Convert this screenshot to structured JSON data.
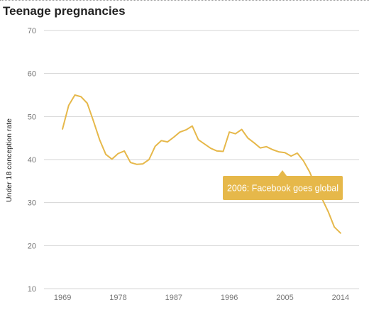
{
  "header": {
    "title": "Teenage pregnancies"
  },
  "chart_data": {
    "type": "line",
    "title": "Teenage pregnancies",
    "xlabel": "",
    "ylabel": "Under 18 conception rate",
    "ylim": [
      10,
      70
    ],
    "xlim": [
      1966,
      2017
    ],
    "yticks": [
      10,
      20,
      30,
      40,
      50,
      60,
      70
    ],
    "xticks": [
      1969,
      1978,
      1987,
      1996,
      2005,
      2014
    ],
    "grid": true,
    "line_color": "#e6b84a",
    "series": [
      {
        "name": "",
        "x": [
          1969,
          1970,
          1971,
          1972,
          1973,
          1974,
          1975,
          1976,
          1977,
          1978,
          1979,
          1980,
          1981,
          1982,
          1983,
          1984,
          1985,
          1986,
          1987,
          1988,
          1989,
          1990,
          1991,
          1992,
          1993,
          1994,
          1995,
          1996,
          1997,
          1998,
          1999,
          2000,
          2001,
          2002,
          2003,
          2004,
          2005,
          2006,
          2007,
          2008,
          2009,
          2010,
          2011,
          2012,
          2013,
          2014
        ],
        "values": [
          47.1,
          52.6,
          55.0,
          54.6,
          53.1,
          49.0,
          44.6,
          41.2,
          40.1,
          41.4,
          42.0,
          39.3,
          38.9,
          39.0,
          40.0,
          43.1,
          44.4,
          44.1,
          45.2,
          46.4,
          46.9,
          47.8,
          44.6,
          43.6,
          42.6,
          42.0,
          41.9,
          46.4,
          46.0,
          47.0,
          45.0,
          43.9,
          42.7,
          43.0,
          42.3,
          41.8,
          41.6,
          40.8,
          41.5,
          39.7,
          37.1,
          33.7,
          30.9,
          27.9,
          24.3,
          22.9
        ]
      }
    ],
    "annotations": [
      {
        "text": "2006: Facebook goes global",
        "x": 2006,
        "y": 37.1
      }
    ]
  }
}
